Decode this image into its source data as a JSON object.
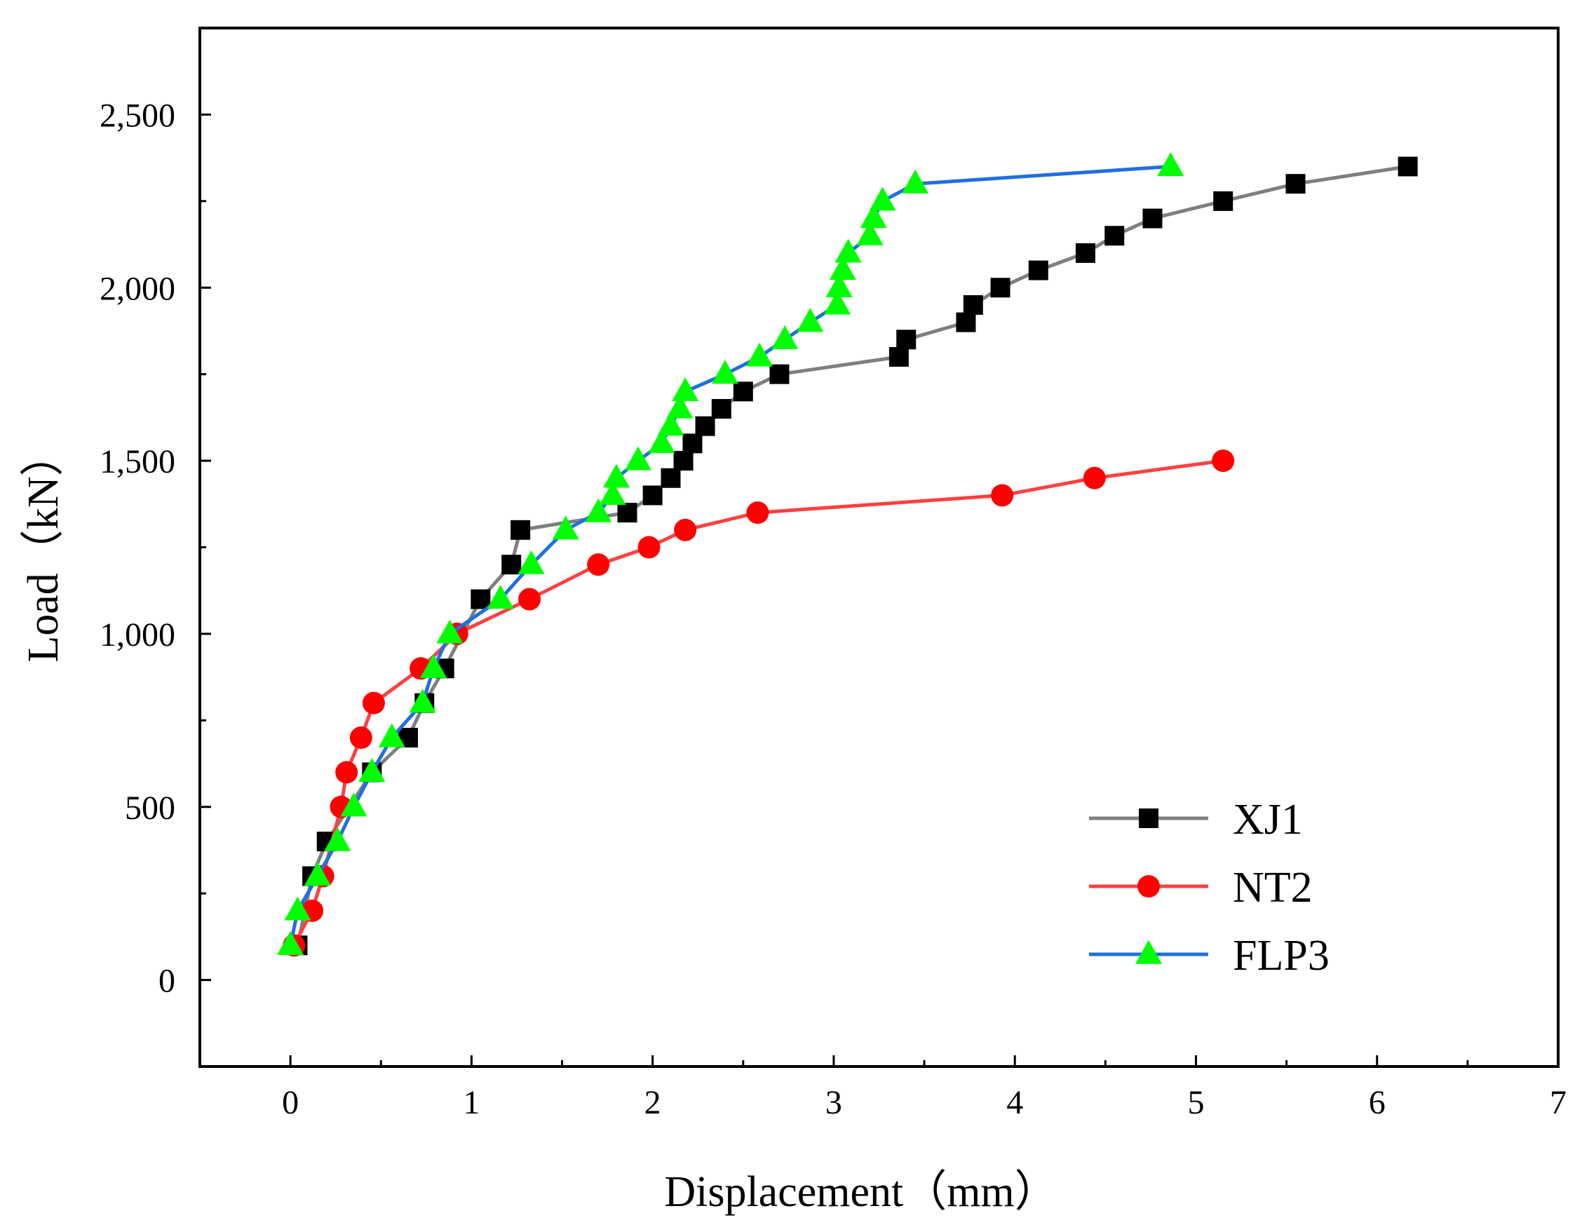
{
  "chart_data": {
    "type": "line",
    "title": "",
    "xlabel": "Displacement（mm）",
    "ylabel": "Load（kN）",
    "xlim": [
      -0.5,
      7
    ],
    "ylim": [
      -250,
      2750
    ],
    "x_ticks": [
      0,
      1,
      2,
      3,
      4,
      5,
      6,
      7
    ],
    "x_tick_labels": [
      "0",
      "1",
      "2",
      "3",
      "4",
      "5",
      "6",
      "7"
    ],
    "y_ticks": [
      0,
      500,
      1000,
      1500,
      2000,
      2500
    ],
    "y_tick_labels": [
      "0",
      "500",
      "1,000",
      "1,500",
      "2,000",
      "2,500"
    ],
    "grid": false,
    "legend_position": "bottom-right",
    "series": [
      {
        "name": "XJ1",
        "line_color": "#7f7f7f",
        "marker_color": "#000000",
        "marker": "square",
        "x": [
          0.04,
          0.12,
          0.2,
          0.45,
          0.65,
          0.74,
          0.85,
          1.05,
          1.22,
          1.27,
          1.86,
          2.0,
          2.1,
          2.17,
          2.22,
          2.29,
          2.38,
          2.5,
          2.7,
          3.36,
          3.4,
          3.73,
          3.77,
          3.92,
          4.13,
          4.39,
          4.55,
          4.76,
          5.15,
          5.55,
          6.17
        ],
        "y": [
          100,
          300,
          400,
          600,
          700,
          800,
          900,
          1100,
          1200,
          1300,
          1350,
          1400,
          1450,
          1500,
          1550,
          1600,
          1650,
          1700,
          1750,
          1800,
          1850,
          1900,
          1950,
          2000,
          2050,
          2100,
          2150,
          2200,
          2250,
          2300,
          2350
        ]
      },
      {
        "name": "NT2",
        "line_color": "#ff4040",
        "marker_color": "#ff0000",
        "marker": "circle",
        "x": [
          0.02,
          0.12,
          0.18,
          0.28,
          0.31,
          0.39,
          0.46,
          0.72,
          0.92,
          1.32,
          1.7,
          1.98,
          2.18,
          2.58,
          3.93,
          4.44,
          5.15
        ],
        "y": [
          100,
          200,
          300,
          500,
          600,
          700,
          800,
          900,
          1000,
          1100,
          1200,
          1250,
          1300,
          1350,
          1400,
          1450,
          1500
        ]
      },
      {
        "name": "FLP3",
        "line_color": "#1f6fe0",
        "marker_color": "#00ff00",
        "marker": "triangle",
        "x": [
          0.0,
          0.04,
          0.15,
          0.26,
          0.35,
          0.45,
          0.56,
          0.73,
          0.79,
          0.88,
          1.16,
          1.33,
          1.52,
          1.7,
          1.78,
          1.8,
          1.92,
          2.05,
          2.1,
          2.15,
          2.18,
          2.4,
          2.59,
          2.73,
          2.87,
          3.02,
          3.03,
          3.05,
          3.08,
          3.2,
          3.22,
          3.27,
          3.45,
          4.86
        ],
        "y": [
          100,
          200,
          300,
          400,
          500,
          600,
          700,
          800,
          900,
          1000,
          1100,
          1200,
          1300,
          1350,
          1400,
          1450,
          1500,
          1550,
          1600,
          1650,
          1700,
          1750,
          1800,
          1850,
          1900,
          1950,
          2000,
          2050,
          2100,
          2150,
          2200,
          2250,
          2300,
          2350
        ]
      }
    ]
  }
}
